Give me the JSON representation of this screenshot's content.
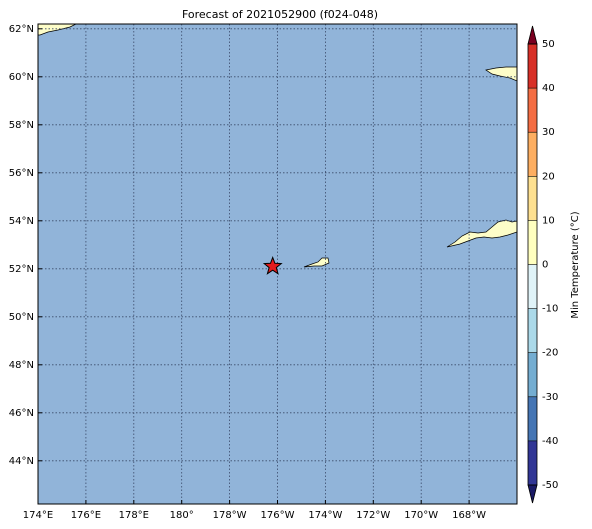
{
  "map": {
    "title": "Forecast of 2021052900 (f024-048)",
    "lonlim": [
      174,
      194
    ],
    "latlim": [
      42.2,
      62.2
    ],
    "lon_ticks": [
      {
        "value": 174,
        "label": "174°E"
      },
      {
        "value": 176,
        "label": "176°E"
      },
      {
        "value": 178,
        "label": "178°E"
      },
      {
        "value": 180,
        "label": "180°"
      },
      {
        "value": 182,
        "label": "178°W"
      },
      {
        "value": 184,
        "label": "176°W"
      },
      {
        "value": 186,
        "label": "174°W"
      },
      {
        "value": 188,
        "label": "172°W"
      },
      {
        "value": 190,
        "label": "170°W"
      },
      {
        "value": 192,
        "label": "168°W"
      }
    ],
    "lat_ticks": [
      {
        "value": 44,
        "label": "44°N"
      },
      {
        "value": 46,
        "label": "46°N"
      },
      {
        "value": 48,
        "label": "48°N"
      },
      {
        "value": 50,
        "label": "50°N"
      },
      {
        "value": 52,
        "label": "52°N"
      },
      {
        "value": 54,
        "label": "54°N"
      },
      {
        "value": 56,
        "label": "56°N"
      },
      {
        "value": 58,
        "label": "58°N"
      },
      {
        "value": 60,
        "label": "60°N"
      },
      {
        "value": 62,
        "label": "62°N"
      }
    ],
    "grid": true,
    "marker": {
      "lon": 183.8,
      "lat": 52.1,
      "color": "#e41a1c"
    },
    "colorbar": {
      "label": "Min Temperature (°C)",
      "lim": [
        -50,
        50
      ],
      "ticks": [
        -50,
        -40,
        -30,
        -20,
        -10,
        0,
        10,
        20,
        30,
        40,
        50
      ],
      "colors": [
        "#313695",
        "#4575b4",
        "#74add1",
        "#abd9e9",
        "#e0f3f8",
        "#ffffbf",
        "#fee090",
        "#fdae61",
        "#f46d43",
        "#d73027",
        "#a50026"
      ],
      "under_color": "#1a1a66",
      "over_color": "#7a0020"
    }
  }
}
